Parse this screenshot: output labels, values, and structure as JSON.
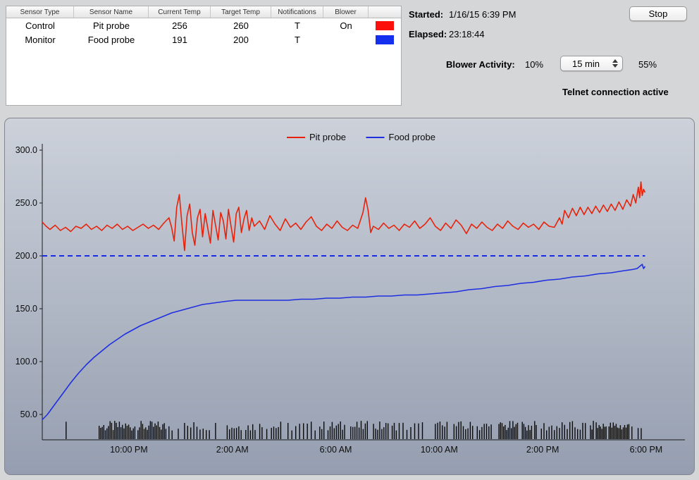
{
  "sensor_table": {
    "columns": [
      "Sensor Type",
      "Sensor Name",
      "Current Temp",
      "Target Temp",
      "Notifications",
      "Blower"
    ],
    "rows": [
      {
        "type": "Control",
        "name": "Pit probe",
        "current": "256",
        "target": "260",
        "notifications": "T",
        "blower": "On",
        "color": "#fb100c"
      },
      {
        "type": "Monitor",
        "name": "Food probe",
        "current": "191",
        "target": "200",
        "notifications": "T",
        "blower": "",
        "color": "#1430ee"
      }
    ]
  },
  "status": {
    "started_label": "Started:",
    "started_value": "1/16/15 6:39 PM",
    "elapsed_label": "Elapsed:",
    "elapsed_value": "23:18:44",
    "stop_button": "Stop",
    "blower_activity_label": "Blower Activity:",
    "blower_activity_value": "10%",
    "interval_select": "15 min",
    "interval_percent": "55%",
    "connection_status": "Telnet connection active"
  },
  "chart_data": {
    "type": "line",
    "title": "",
    "xlabel": "",
    "ylabel": "",
    "xlim": [
      0,
      23.31
    ],
    "ylim": [
      26,
      300
    ],
    "grid": false,
    "legend_position": "top-center",
    "legend": [
      {
        "label": "Pit probe",
        "color": "#e8220a"
      },
      {
        "label": "Food probe",
        "color": "#1f2fe0"
      }
    ],
    "y_ticks": [
      {
        "v": 300,
        "label": "300.0"
      },
      {
        "v": 250,
        "label": "250.0"
      },
      {
        "v": 200,
        "label": "200.0"
      },
      {
        "v": 150,
        "label": "150.0"
      },
      {
        "v": 100,
        "label": "100.0"
      },
      {
        "v": 50,
        "label": "50.0"
      }
    ],
    "x_ticks": [
      {
        "t": 3.35,
        "label": "10:00 PM"
      },
      {
        "t": 7.35,
        "label": "2:00 AM"
      },
      {
        "t": 11.35,
        "label": "6:00 AM"
      },
      {
        "t": 15.35,
        "label": "10:00 AM"
      },
      {
        "t": 19.35,
        "label": "2:00 PM"
      },
      {
        "t": 23.35,
        "label": "6:00 PM"
      }
    ],
    "target_line": {
      "value": 200,
      "color": "#1a2be0",
      "style": "dashed"
    },
    "series": [
      {
        "name": "Pit probe",
        "color": "#e8220a",
        "points": [
          [
            0,
            232
          ],
          [
            0.15,
            228
          ],
          [
            0.3,
            225
          ],
          [
            0.5,
            229
          ],
          [
            0.7,
            224
          ],
          [
            0.9,
            227
          ],
          [
            1.1,
            223
          ],
          [
            1.3,
            228
          ],
          [
            1.5,
            226
          ],
          [
            1.7,
            230
          ],
          [
            1.9,
            225
          ],
          [
            2.1,
            228
          ],
          [
            2.3,
            224
          ],
          [
            2.5,
            229
          ],
          [
            2.7,
            226
          ],
          [
            2.9,
            230
          ],
          [
            3.1,
            225
          ],
          [
            3.3,
            228
          ],
          [
            3.5,
            224
          ],
          [
            3.7,
            227
          ],
          [
            3.9,
            230
          ],
          [
            4.1,
            226
          ],
          [
            4.3,
            229
          ],
          [
            4.5,
            225
          ],
          [
            4.7,
            231
          ],
          [
            4.9,
            236
          ],
          [
            5.0,
            227
          ],
          [
            5.1,
            214
          ],
          [
            5.2,
            246
          ],
          [
            5.3,
            258
          ],
          [
            5.4,
            230
          ],
          [
            5.5,
            205
          ],
          [
            5.6,
            238
          ],
          [
            5.7,
            249
          ],
          [
            5.8,
            222
          ],
          [
            5.9,
            210
          ],
          [
            6.0,
            236
          ],
          [
            6.1,
            244
          ],
          [
            6.2,
            218
          ],
          [
            6.3,
            240
          ],
          [
            6.4,
            226
          ],
          [
            6.5,
            212
          ],
          [
            6.6,
            243
          ],
          [
            6.7,
            229
          ],
          [
            6.8,
            215
          ],
          [
            6.9,
            241
          ],
          [
            7.0,
            233
          ],
          [
            7.1,
            216
          ],
          [
            7.2,
            244
          ],
          [
            7.3,
            228
          ],
          [
            7.4,
            213
          ],
          [
            7.5,
            240
          ],
          [
            7.6,
            246
          ],
          [
            7.7,
            222
          ],
          [
            7.8,
            235
          ],
          [
            7.9,
            243
          ],
          [
            8.0,
            224
          ],
          [
            8.1,
            236
          ],
          [
            8.2,
            228
          ],
          [
            8.4,
            233
          ],
          [
            8.6,
            225
          ],
          [
            8.8,
            238
          ],
          [
            9.0,
            230
          ],
          [
            9.2,
            224
          ],
          [
            9.4,
            235
          ],
          [
            9.6,
            227
          ],
          [
            9.8,
            231
          ],
          [
            10.0,
            225
          ],
          [
            10.2,
            232
          ],
          [
            10.4,
            237
          ],
          [
            10.6,
            228
          ],
          [
            10.8,
            224
          ],
          [
            11.0,
            230
          ],
          [
            11.2,
            226
          ],
          [
            11.4,
            233
          ],
          [
            11.6,
            227
          ],
          [
            11.8,
            224
          ],
          [
            12.0,
            229
          ],
          [
            12.2,
            226
          ],
          [
            12.4,
            241
          ],
          [
            12.5,
            255
          ],
          [
            12.6,
            243
          ],
          [
            12.7,
            222
          ],
          [
            12.8,
            228
          ],
          [
            13.0,
            225
          ],
          [
            13.2,
            231
          ],
          [
            13.4,
            226
          ],
          [
            13.6,
            229
          ],
          [
            13.8,
            224
          ],
          [
            14.0,
            230
          ],
          [
            14.2,
            227
          ],
          [
            14.4,
            233
          ],
          [
            14.6,
            226
          ],
          [
            14.8,
            230
          ],
          [
            15.0,
            236
          ],
          [
            15.2,
            228
          ],
          [
            15.4,
            224
          ],
          [
            15.6,
            231
          ],
          [
            15.8,
            226
          ],
          [
            16.0,
            234
          ],
          [
            16.2,
            229
          ],
          [
            16.4,
            221
          ],
          [
            16.6,
            230
          ],
          [
            16.8,
            226
          ],
          [
            17.0,
            232
          ],
          [
            17.2,
            227
          ],
          [
            17.4,
            224
          ],
          [
            17.6,
            230
          ],
          [
            17.8,
            226
          ],
          [
            18.0,
            233
          ],
          [
            18.2,
            228
          ],
          [
            18.4,
            225
          ],
          [
            18.6,
            231
          ],
          [
            18.8,
            227
          ],
          [
            19.0,
            230
          ],
          [
            19.2,
            225
          ],
          [
            19.4,
            232
          ],
          [
            19.6,
            228
          ],
          [
            19.8,
            227
          ],
          [
            20.0,
            236
          ],
          [
            20.1,
            230
          ],
          [
            20.2,
            243
          ],
          [
            20.35,
            236
          ],
          [
            20.5,
            245
          ],
          [
            20.65,
            238
          ],
          [
            20.8,
            246
          ],
          [
            20.95,
            239
          ],
          [
            21.1,
            246
          ],
          [
            21.25,
            240
          ],
          [
            21.4,
            247
          ],
          [
            21.55,
            241
          ],
          [
            21.7,
            248
          ],
          [
            21.85,
            242
          ],
          [
            22.0,
            249
          ],
          [
            22.15,
            243
          ],
          [
            22.3,
            251
          ],
          [
            22.45,
            244
          ],
          [
            22.6,
            253
          ],
          [
            22.75,
            247
          ],
          [
            22.85,
            258
          ],
          [
            22.95,
            250
          ],
          [
            23.05,
            265
          ],
          [
            23.1,
            255
          ],
          [
            23.15,
            270
          ],
          [
            23.2,
            257
          ],
          [
            23.25,
            263
          ],
          [
            23.31,
            260
          ]
        ]
      },
      {
        "name": "Food probe",
        "color": "#1f2fe0",
        "points": [
          [
            0,
            45
          ],
          [
            0.2,
            50
          ],
          [
            0.5,
            60
          ],
          [
            0.8,
            70
          ],
          [
            1.1,
            80
          ],
          [
            1.4,
            89
          ],
          [
            1.7,
            97
          ],
          [
            2.0,
            104
          ],
          [
            2.3,
            110
          ],
          [
            2.6,
            116
          ],
          [
            2.9,
            121
          ],
          [
            3.2,
            126
          ],
          [
            3.5,
            130
          ],
          [
            3.8,
            134
          ],
          [
            4.1,
            137
          ],
          [
            4.4,
            140
          ],
          [
            4.7,
            143
          ],
          [
            5.0,
            146
          ],
          [
            5.3,
            148
          ],
          [
            5.6,
            150
          ],
          [
            5.9,
            152
          ],
          [
            6.2,
            154
          ],
          [
            6.5,
            155
          ],
          [
            6.8,
            156
          ],
          [
            7.1,
            157
          ],
          [
            7.5,
            158
          ],
          [
            8.0,
            158
          ],
          [
            8.5,
            158
          ],
          [
            9.0,
            158
          ],
          [
            9.5,
            158
          ],
          [
            10.0,
            159
          ],
          [
            10.5,
            159
          ],
          [
            11.0,
            160
          ],
          [
            11.5,
            160
          ],
          [
            12.0,
            161
          ],
          [
            12.5,
            161
          ],
          [
            13.0,
            162
          ],
          [
            13.5,
            162
          ],
          [
            14.0,
            163
          ],
          [
            14.5,
            163
          ],
          [
            15.0,
            164
          ],
          [
            15.5,
            165
          ],
          [
            16.0,
            166
          ],
          [
            16.5,
            168
          ],
          [
            17.0,
            169
          ],
          [
            17.5,
            171
          ],
          [
            18.0,
            172
          ],
          [
            18.5,
            174
          ],
          [
            19.0,
            175
          ],
          [
            19.5,
            177
          ],
          [
            20.0,
            178
          ],
          [
            20.5,
            180
          ],
          [
            21.0,
            181
          ],
          [
            21.5,
            183
          ],
          [
            22.0,
            184
          ],
          [
            22.5,
            186
          ],
          [
            22.8,
            187
          ],
          [
            23.0,
            188
          ],
          [
            23.1,
            190
          ],
          [
            23.2,
            192
          ],
          [
            23.25,
            188
          ],
          [
            23.31,
            190
          ]
        ]
      }
    ],
    "blower_ticks": {
      "color": "#0a0a0a",
      "segments": [
        {
          "start": 0.92,
          "end": 0.98,
          "gap": 0.06
        },
        {
          "start": 2.2,
          "end": 4.8,
          "gap": 0.06
        },
        {
          "start": 4.9,
          "end": 7.1,
          "gap": 0.12
        },
        {
          "start": 7.15,
          "end": 9.3,
          "gap": 0.09
        },
        {
          "start": 9.5,
          "end": 10.6,
          "gap": 0.15
        },
        {
          "start": 10.65,
          "end": 13.7,
          "gap": 0.08
        },
        {
          "start": 13.8,
          "end": 15.0,
          "gap": 0.15
        },
        {
          "start": 15.2,
          "end": 17.4,
          "gap": 0.09
        },
        {
          "start": 17.6,
          "end": 19.1,
          "gap": 0.06
        },
        {
          "start": 19.3,
          "end": 21.1,
          "gap": 0.1
        },
        {
          "start": 21.2,
          "end": 22.7,
          "gap": 0.055
        },
        {
          "start": 22.8,
          "end": 23.25,
          "gap": 0.12
        }
      ]
    }
  }
}
